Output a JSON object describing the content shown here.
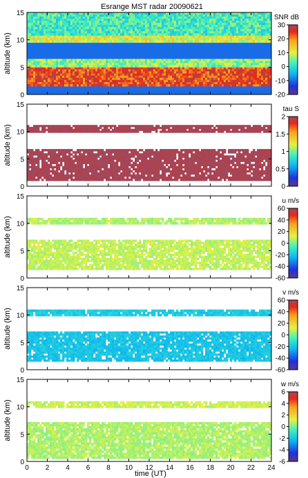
{
  "title": "Esrange MST radar 20090621",
  "chart_data": {
    "type": "heatmap",
    "title": "Esrange MST radar 20090621",
    "xlabel": "time (UT)",
    "xlim": [
      0,
      24
    ],
    "xticks": [
      0,
      2,
      4,
      6,
      8,
      10,
      12,
      14,
      16,
      18,
      20,
      22,
      24
    ],
    "panels": [
      {
        "ylabel": "altitude (km)",
        "ylim": [
          0,
          15
        ],
        "yticks": [
          0,
          5,
          10,
          15
        ],
        "colorbar_label": "SNR dB",
        "clim": [
          -20,
          30
        ],
        "cticks": [
          -20,
          -10,
          0,
          10,
          20,
          30
        ],
        "layers": [
          {
            "alt": [
              1.5,
              5.0
            ],
            "value": 24
          },
          {
            "alt": [
              5.0,
              6.5
            ],
            "value": 6
          },
          {
            "alt": [
              9.5,
              10.8
            ],
            "value": 10
          },
          {
            "alt": [
              10.8,
              15
            ],
            "value": 2
          }
        ]
      },
      {
        "ylabel": "altitude (km)",
        "ylim": [
          0,
          15
        ],
        "yticks": [
          0,
          5,
          10,
          15
        ],
        "colorbar_label": "tau S",
        "clim": [
          0,
          2
        ],
        "cticks": [
          0,
          0.5,
          1,
          1.5,
          2
        ],
        "layers": [
          {
            "alt": [
              1.0,
              6.8
            ],
            "value": 2
          },
          {
            "alt": [
              9.8,
              11.2
            ],
            "value": 2
          }
        ]
      },
      {
        "ylabel": "altitude (km)",
        "ylim": [
          0,
          15
        ],
        "yticks": [
          0,
          5,
          10,
          15
        ],
        "colorbar_label": "u m/s",
        "clim": [
          -60,
          60
        ],
        "cticks": [
          -60,
          -40,
          -20,
          0,
          20,
          40,
          60
        ],
        "layers": [
          {
            "alt": [
              1.5,
              7.0
            ],
            "value": 8
          },
          {
            "alt": [
              9.8,
              11.0
            ],
            "value": 6
          }
        ]
      },
      {
        "ylabel": "altitude (km)",
        "ylim": [
          0,
          15
        ],
        "yticks": [
          0,
          5,
          10,
          15
        ],
        "colorbar_label": "v m/s",
        "clim": [
          -60,
          60
        ],
        "cticks": [
          -60,
          -40,
          -20,
          0,
          20,
          40,
          60
        ],
        "layers": [
          {
            "alt": [
              1.5,
              7.0
            ],
            "value": -20
          },
          {
            "alt": [
              9.8,
              11.0
            ],
            "value": -18
          }
        ]
      },
      {
        "ylabel": "altitude (km)",
        "ylim": [
          0,
          15
        ],
        "yticks": [
          0,
          5,
          10,
          15
        ],
        "colorbar_label": "w m/s",
        "clim": [
          -6,
          6
        ],
        "cticks": [
          -6,
          -4,
          -2,
          0,
          2,
          4,
          6
        ],
        "layers": [
          {
            "alt": [
              0.5,
              7.2
            ],
            "value": 0.6
          },
          {
            "alt": [
              9.8,
              11.0
            ],
            "value": 0.9
          }
        ]
      }
    ]
  }
}
